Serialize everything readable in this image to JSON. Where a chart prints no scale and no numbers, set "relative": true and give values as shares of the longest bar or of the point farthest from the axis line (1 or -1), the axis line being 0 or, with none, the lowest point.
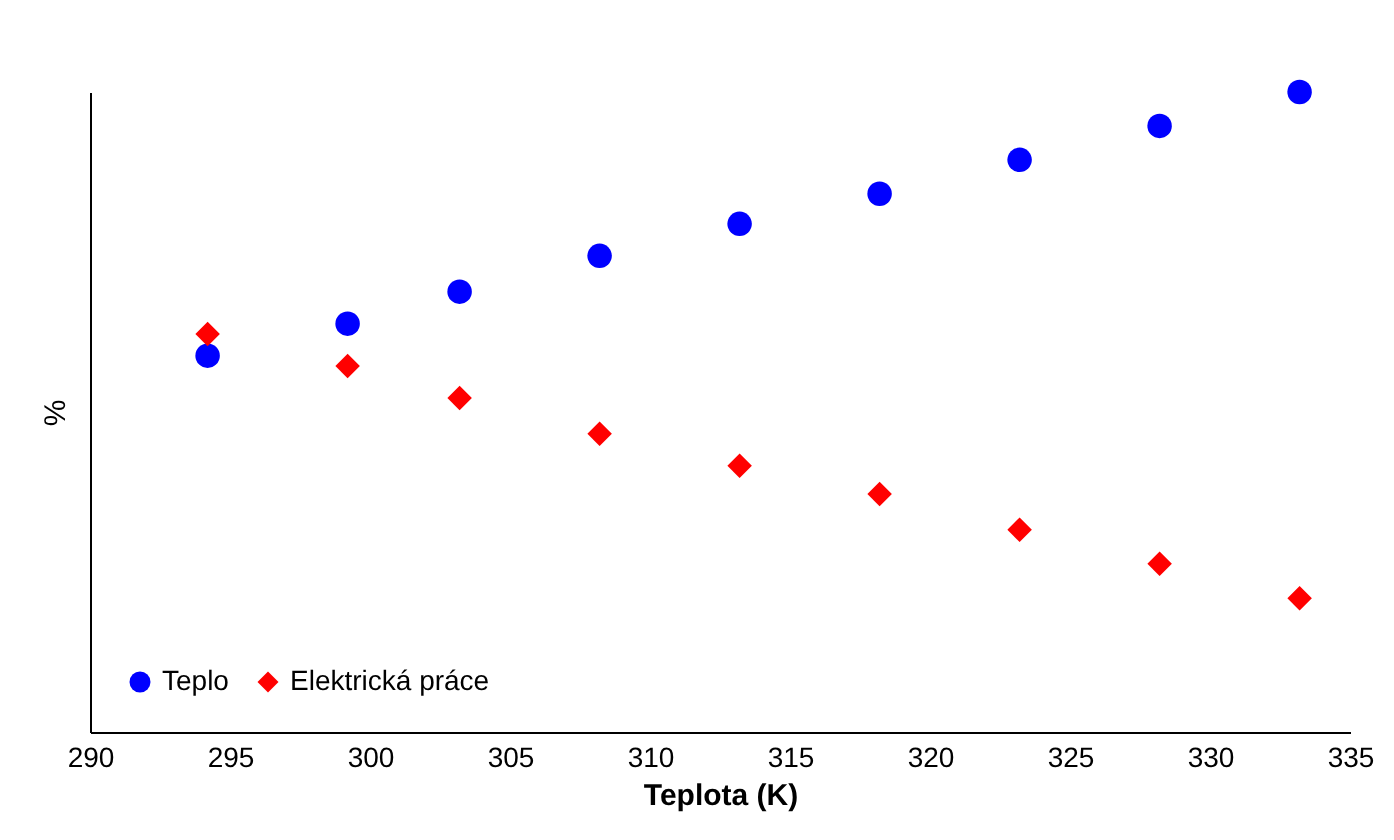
{
  "chart_data": {
    "type": "scatter",
    "relative": true,
    "xlabel": "Teplota (K)",
    "ylabel": "%",
    "x": [
      294.2,
      299.2,
      303.2,
      308.2,
      313.2,
      318.2,
      323.2,
      328.2,
      333.2
    ],
    "xlim": [
      290,
      335
    ],
    "xticks": [
      290,
      295,
      300,
      305,
      310,
      315,
      320,
      325,
      330,
      335
    ],
    "grid": false,
    "legend": "bottom left",
    "series": [
      {
        "name": "Teplo",
        "color": "#0000ff",
        "marker": "circle",
        "values": [
          0.588,
          0.638,
          0.688,
          0.744,
          0.794,
          0.841,
          0.894,
          0.947,
          1
        ]
      },
      {
        "name": "Elektrická práce",
        "color": "#ff0000",
        "marker": "diamond",
        "values": [
          0.622,
          0.572,
          0.522,
          0.466,
          0.416,
          0.372,
          0.316,
          0.263,
          0.209
        ]
      }
    ]
  }
}
